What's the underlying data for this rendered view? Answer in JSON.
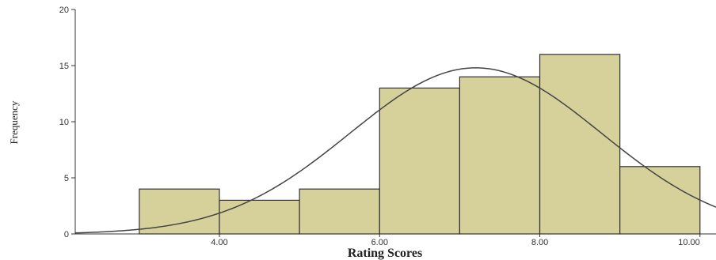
{
  "chart_data": {
    "type": "bar",
    "subtype": "histogram",
    "xlabel": "Rating Scores",
    "ylabel": "Frequency",
    "xlim": [
      2.2,
      10.2
    ],
    "ylim": [
      0,
      20
    ],
    "x_ticks": [
      4,
      6,
      8,
      10
    ],
    "x_tick_labels": [
      "4.00",
      "6.00",
      "8.00",
      "10.00"
    ],
    "y_ticks": [
      0,
      5,
      10,
      15,
      20
    ],
    "y_tick_labels": [
      "0",
      "5",
      "10",
      "15",
      "20"
    ],
    "bins": [
      {
        "start": 3,
        "end": 4,
        "count": 4
      },
      {
        "start": 4,
        "end": 5,
        "count": 3
      },
      {
        "start": 5,
        "end": 6,
        "count": 4
      },
      {
        "start": 6,
        "end": 7,
        "count": 13
      },
      {
        "start": 7,
        "end": 8,
        "count": 14
      },
      {
        "start": 8,
        "end": 9,
        "count": 16
      },
      {
        "start": 9,
        "end": 10,
        "count": 6
      }
    ],
    "normal_curve": {
      "mean": 7.2,
      "sd": 1.57,
      "peak": 14.8
    },
    "grid": false,
    "legend": "none",
    "bar_color": "#d6d09a",
    "bar_edge_color": "#333333",
    "curve_color": "#444444"
  }
}
